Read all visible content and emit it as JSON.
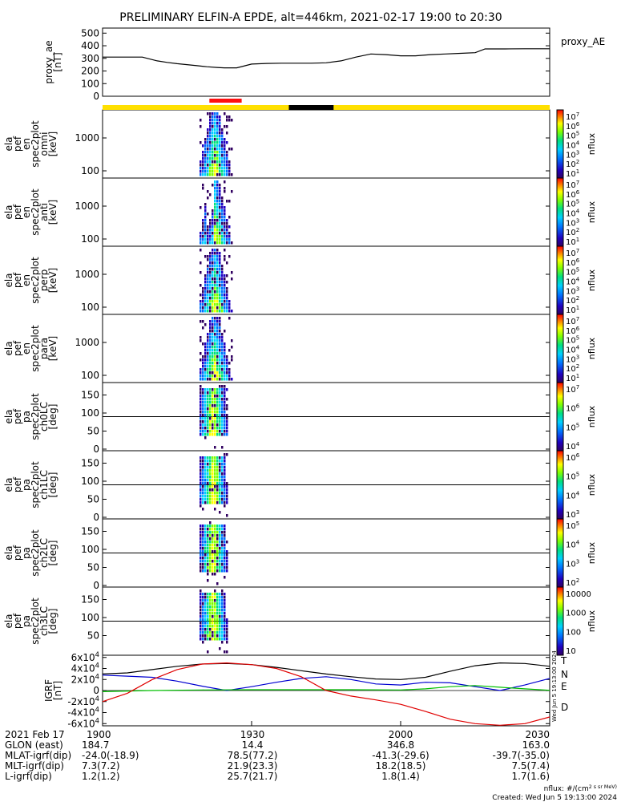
{
  "chart_data": {
    "type": "line",
    "title": "PRELIMINARY ELFIN-A EPDE, alt=446km, 2021-02-17 19:00 to 20:30",
    "xlim": [
      "19:00",
      "20:30"
    ],
    "x_ticks": [
      "1900",
      "1930",
      "2000",
      "2030"
    ],
    "panels": [
      {
        "id": "ae",
        "ylabel": [
          "proxy_ae",
          "[nT]"
        ],
        "yticks": [
          "0",
          "100",
          "200",
          "300",
          "400",
          "500"
        ],
        "ylim": [
          0,
          540
        ],
        "legend": "proxy_AE",
        "series": [
          {
            "name": "proxy_AE",
            "color": "#000000",
            "x": [
              0,
              5,
              8,
              11,
              13,
              15,
              17,
              19,
              21,
              23,
              24.5,
              27,
              30,
              33,
              36,
              39,
              42,
              45,
              48,
              51,
              54,
              57,
              60,
              63,
              66,
              69,
              72,
              75,
              77,
              81,
              85,
              90
            ],
            "y": [
              310,
              310,
              310,
              280,
              268,
              258,
              250,
              242,
              234,
              228,
              225,
              225,
              255,
              260,
              262,
              262,
              262,
              265,
              280,
              310,
              335,
              330,
              320,
              320,
              330,
              335,
              340,
              345,
              375,
              375,
              376,
              376
            ]
          }
        ]
      },
      {
        "id": "omni",
        "ylabel": [
          "ela",
          "pef",
          "en",
          "spec2plot",
          "omni",
          "[keV]"
        ],
        "yticks": [
          "100",
          "1000"
        ],
        "cbar_ticks": [
          "10^7",
          "10^6",
          "10^5",
          "10^4",
          "10^3",
          "10^2",
          "10^1"
        ],
        "cbar_label": "nflux"
      },
      {
        "id": "anti",
        "ylabel": [
          "ela",
          "pef",
          "en",
          "spec2plot",
          "anti",
          "[keV]"
        ],
        "yticks": [
          "100",
          "1000"
        ],
        "cbar_ticks": [
          "10^7",
          "10^6",
          "10^5",
          "10^4",
          "10^3",
          "10^2",
          "10^1"
        ],
        "cbar_label": "nflux"
      },
      {
        "id": "perp",
        "ylabel": [
          "ela",
          "pef",
          "en",
          "spec2plot",
          "perp",
          "[keV]"
        ],
        "yticks": [
          "100",
          "1000"
        ],
        "cbar_ticks": [
          "10^7",
          "10^6",
          "10^5",
          "10^4",
          "10^3",
          "10^2",
          "10^1"
        ],
        "cbar_label": "nflux"
      },
      {
        "id": "para",
        "ylabel": [
          "ela",
          "pef",
          "en",
          "spec2plot",
          "para",
          "[keV]"
        ],
        "yticks": [
          "100",
          "1000"
        ],
        "cbar_ticks": [
          "10^7",
          "10^6",
          "10^5",
          "10^4",
          "10^3",
          "10^2",
          "10^1"
        ],
        "cbar_label": "nflux"
      },
      {
        "id": "ch0LC",
        "ylabel": [
          "ela",
          "pef",
          "pa",
          "spec2plot",
          "ch0LC",
          "[deg]"
        ],
        "yticks": [
          "0",
          "50",
          "100",
          "150"
        ],
        "cbar_ticks": [
          "10^7",
          "10^6",
          "10^5",
          "10^4"
        ],
        "cbar_label": "nflux"
      },
      {
        "id": "ch1LC",
        "ylabel": [
          "ela",
          "pef",
          "pa",
          "spec2plot",
          "ch1LC",
          "[deg]"
        ],
        "yticks": [
          "0",
          "50",
          "100",
          "150"
        ],
        "cbar_ticks": [
          "10^6",
          "10^5",
          "10^4",
          "10^3"
        ],
        "cbar_label": "nflux"
      },
      {
        "id": "ch2LC",
        "ylabel": [
          "ela",
          "pef",
          "pa",
          "spec2plot",
          "ch2LC",
          "[deg]"
        ],
        "yticks": [
          "0",
          "50",
          "100",
          "150"
        ],
        "cbar_ticks": [
          "10^5",
          "10^4",
          "10^3",
          "10^2"
        ],
        "cbar_label": "nflux"
      },
      {
        "id": "ch3LC",
        "ylabel": [
          "ela",
          "pef",
          "pa",
          "spec2plot",
          "ch3LC",
          "[deg]"
        ],
        "yticks": [
          "50",
          "100",
          "150"
        ],
        "cbar_ticks": [
          "10000",
          "1000",
          "100",
          "10"
        ],
        "cbar_label": "nflux"
      },
      {
        "id": "igrf",
        "ylabel": [
          "IGRF",
          "[nT]"
        ],
        "yticks": [
          "-6x10^4",
          "-4x10^4",
          "-2x10^4",
          "0",
          "2x10^4",
          "4x10^4",
          "6x10^4"
        ],
        "ylim": [
          -64000,
          64000
        ],
        "legend": [
          {
            "label": "T",
            "color": "#000000"
          },
          {
            "label": "N",
            "color": "#0000d0"
          },
          {
            "label": "E",
            "color": "#00c000"
          },
          {
            "label": "D",
            "color": "#e00000"
          }
        ],
        "series": [
          {
            "name": "T",
            "color": "#000000",
            "x": [
              0,
              5,
              10,
              15,
              20,
              25,
              30,
              35,
              40,
              45,
              50,
              55,
              60,
              65,
              70,
              75,
              80,
              85,
              90
            ],
            "y": [
              30000,
              32000,
              38000,
              44000,
              48000,
              49000,
              47000,
              42000,
              36000,
              30000,
              25000,
              21000,
              20000,
              24000,
              35000,
              45000,
              50000,
              49000,
              44000
            ]
          },
          {
            "name": "N",
            "color": "#0000d0",
            "x": [
              0,
              5,
              10,
              15,
              20,
              25,
              30,
              35,
              40,
              45,
              50,
              55,
              60,
              65,
              70,
              75,
              80,
              85,
              90
            ],
            "y": [
              28000,
              26000,
              24000,
              17000,
              8000,
              0,
              7000,
              15000,
              22000,
              25000,
              20000,
              12000,
              10000,
              15000,
              14000,
              7000,
              0,
              10000,
              22000
            ]
          },
          {
            "name": "E",
            "color": "#00c000",
            "x": [
              0,
              10,
              20,
              30,
              40,
              50,
              60,
              65,
              70,
              75,
              80,
              85,
              90
            ],
            "y": [
              -2000,
              0,
              1000,
              1500,
              1500,
              1500,
              1000,
              3000,
              7000,
              9000,
              6000,
              3000,
              500
            ]
          },
          {
            "name": "D",
            "color": "#e00000",
            "x": [
              0,
              5,
              10,
              15,
              20,
              25,
              30,
              35,
              40,
              45,
              50,
              55,
              60,
              65,
              70,
              75,
              80,
              85,
              90
            ],
            "y": [
              -20000,
              -5000,
              20000,
              38000,
              48000,
              50000,
              47000,
              40000,
              25000,
              0,
              -10000,
              -17000,
              -25000,
              -38000,
              -52000,
              -60000,
              -63000,
              -60000,
              -48000
            ]
          }
        ],
        "stamp": "Wed Jun  5 19:13:00 2024"
      }
    ],
    "orbit_bars": [
      {
        "color": "#ffe000",
        "x0": 0,
        "x1": 90
      },
      {
        "color": "#000000",
        "x0": 37.5,
        "x1": 46.5
      },
      {
        "color": "#ff1010",
        "x0": 21.5,
        "x1": 28
      }
    ],
    "footer": {
      "rows": [
        {
          "label": "2021 Feb 17",
          "values": [
            "1900",
            "1930",
            "2000",
            "2030"
          ]
        },
        {
          "label": "GLON (east)",
          "values": [
            "184.7",
            "14.4",
            "346.8",
            "163.0"
          ]
        },
        {
          "label": "MLAT-igrf(dip)",
          "values": [
            "-24.0(-18.9)",
            "78.5(77.2)",
            "-41.3(-29.6)",
            "-39.7(-35.0)"
          ]
        },
        {
          "label": "MLT-igrf(dip)",
          "values": [
            "7.3(7.2)",
            "21.9(23.3)",
            "18.2(18.5)",
            "7.5(7.4)"
          ]
        },
        {
          "label": "L-igrf(dip)",
          "values": [
            "1.2(1.2)",
            "25.7(21.7)",
            "1.8(1.4)",
            "1.7(1.6)"
          ]
        }
      ],
      "units_note": "nflux: #/(cm^2 s sr MeV)",
      "created": "Created: Wed Jun  5 19:13:00 2024"
    }
  }
}
